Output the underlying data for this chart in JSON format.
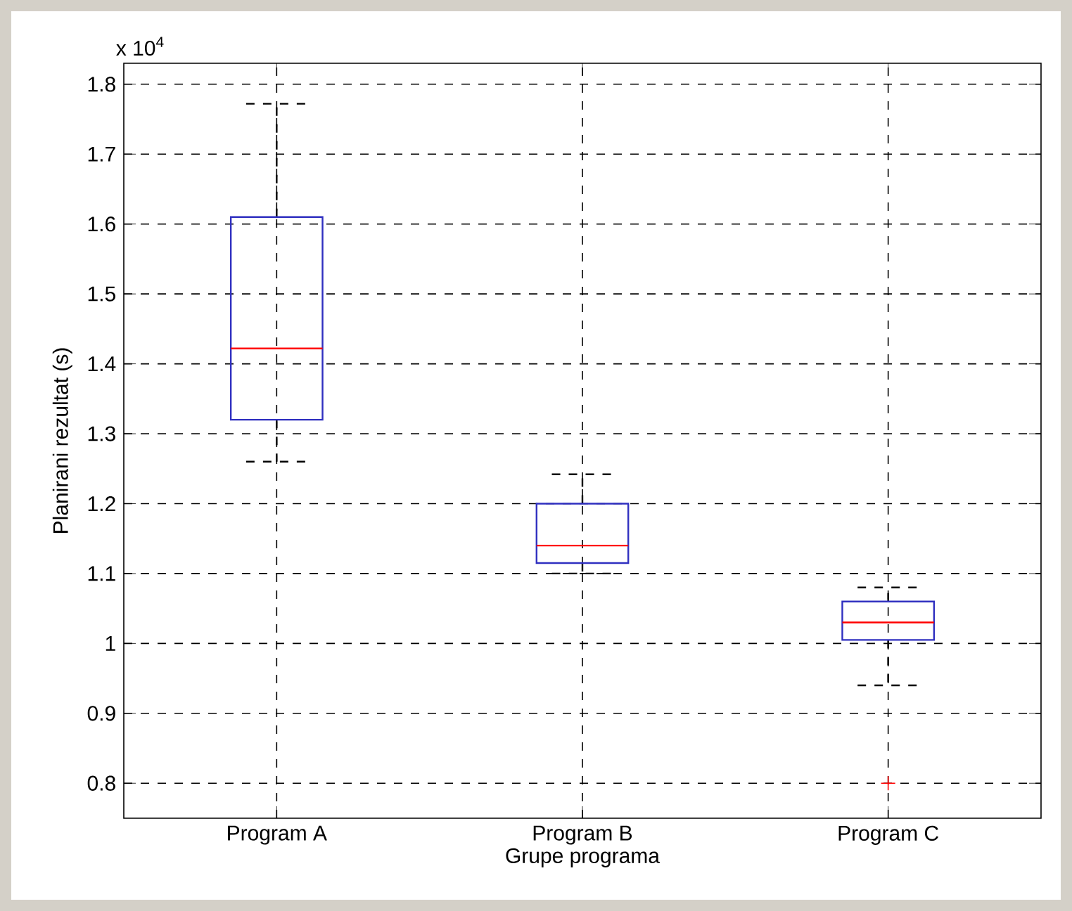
{
  "chart_data": {
    "type": "box",
    "xlabel": "Grupe programa",
    "ylabel": "Planirani rezultat (s)",
    "categories": [
      "Program A",
      "Program B",
      "Program C"
    ],
    "series": [
      {
        "color": "#3030c0",
        "boxes": [
          {
            "low": 1.26,
            "q1": 1.32,
            "median": 1.422,
            "q3": 1.61,
            "high": 1.772
          },
          {
            "low": 1.1,
            "q1": 1.115,
            "median": 1.14,
            "q3": 1.2,
            "high": 1.242
          },
          {
            "low": 0.94,
            "q1": 1.005,
            "median": 1.03,
            "q3": 1.06,
            "high": 1.08,
            "outliers": [
              0.8
            ]
          }
        ]
      }
    ],
    "ylim": [
      0.75,
      1.83
    ],
    "yticks": [
      0.8,
      0.9,
      1,
      1.1,
      1.2,
      1.3,
      1.4,
      1.5,
      1.6,
      1.7,
      1.8
    ],
    "grid": true,
    "annotations": [
      "x 10$^{4}$"
    ]
  }
}
